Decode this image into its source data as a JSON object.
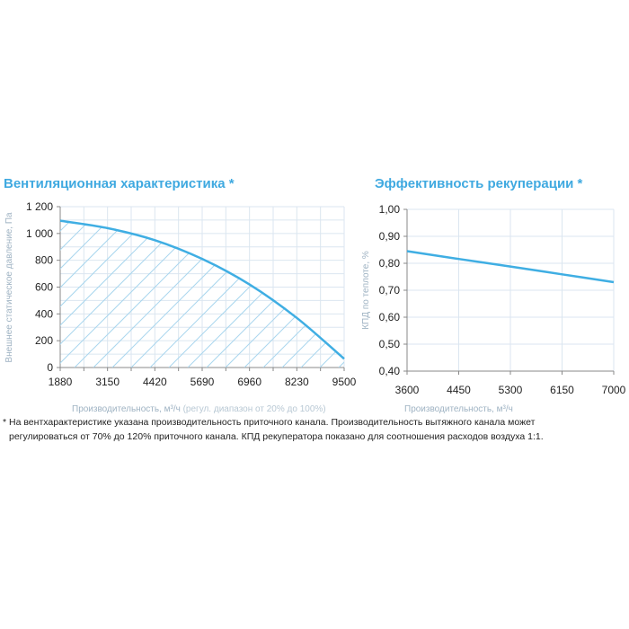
{
  "colors": {
    "line": "#3faee3",
    "grid": "#dbe6f0",
    "hatch": "#a9d6ee",
    "title": "#3fa9e0"
  },
  "chart_data": [
    {
      "type": "area",
      "title": "Вентиляционная характеристика *",
      "xlabel": "Производительность, м³/ч",
      "xlabel_note": "(регул. диапазон от 20% до 100%)",
      "ylabel": "Внешнее статическое давление, Па",
      "xlim": [
        1880,
        9500
      ],
      "ylim": [
        0,
        1200
      ],
      "x_ticks": [
        "1880",
        "3150",
        "4420",
        "5690",
        "6960",
        "8230",
        "9500"
      ],
      "y_ticks": [
        "0",
        "200",
        "400",
        "600",
        "800",
        "1 000",
        "1 200"
      ],
      "x": [
        1880,
        3150,
        4420,
        5690,
        6960,
        8230,
        9500
      ],
      "y": [
        1095,
        1040,
        950,
        810,
        620,
        370,
        65
      ],
      "grid": true
    },
    {
      "type": "line",
      "title": "Эффективность рекуперации *",
      "xlabel": "Производительность, м³/ч",
      "ylabel": "КПД по теплоте, %",
      "xlim": [
        3600,
        7000
      ],
      "ylim": [
        0.4,
        1.0
      ],
      "x_ticks": [
        "3600",
        "4450",
        "5300",
        "6150",
        "7000"
      ],
      "y_ticks": [
        "0,40",
        "0,50",
        "0,60",
        "0,70",
        "0,80",
        "0,90",
        "1,00"
      ],
      "x": [
        3600,
        4450,
        5300,
        6150,
        7000
      ],
      "y": [
        0.845,
        0.816,
        0.788,
        0.759,
        0.73
      ],
      "grid": true
    }
  ],
  "footnote": [
    "* На вентхарактеристике указана производительность приточного канала. Производительность вытяжного канала может",
    "регулироваться от 70% до 120% приточного канала. КПД рекуператора показано для соотношения расходов воздуха 1:1."
  ]
}
